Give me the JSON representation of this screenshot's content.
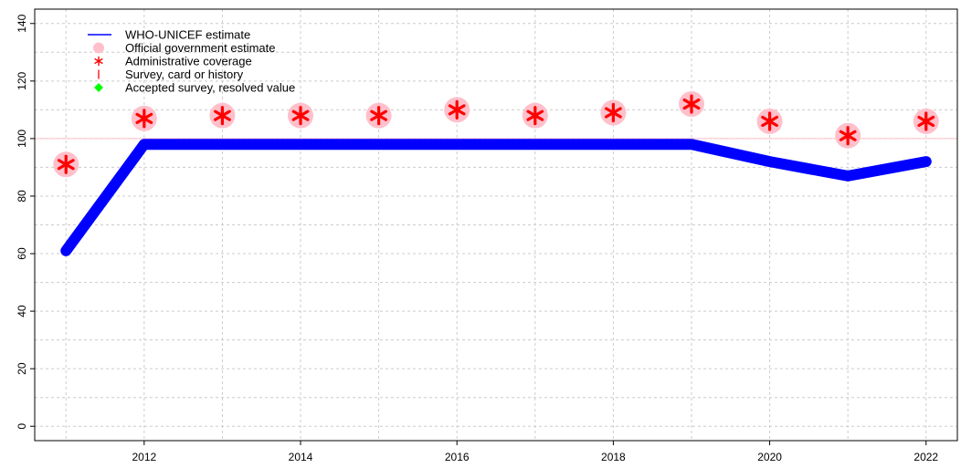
{
  "chart_data": {
    "type": "line",
    "title": "",
    "xlabel": "",
    "ylabel": "",
    "xlim": [
      2010.6,
      2022.4
    ],
    "ylim": [
      -5,
      145
    ],
    "x_ticks": [
      2012,
      2014,
      2016,
      2018,
      2020,
      2022
    ],
    "y_ticks": [
      0,
      20,
      40,
      60,
      80,
      100,
      120,
      140
    ],
    "grid": true,
    "reference_line": {
      "y": 100,
      "color": "#ffc0cb"
    },
    "legend": {
      "position": "top-left",
      "entries": [
        {
          "label": "WHO-UNICEF estimate",
          "marker": "line",
          "color": "#0000ff"
        },
        {
          "label": "Official government estimate",
          "marker": "circle",
          "color": "#ffc0cb"
        },
        {
          "label": "Administrative coverage",
          "marker": "asterisk",
          "color": "#ff0000"
        },
        {
          "label": "Survey, card or history",
          "marker": "vbar",
          "color": "#ff0000"
        },
        {
          "label": "Accepted survey, resolved value",
          "marker": "diamond",
          "color": "#00ff00"
        }
      ]
    },
    "series": [
      {
        "name": "WHO-UNICEF estimate",
        "color": "#0000ff",
        "x": [
          2011,
          2012,
          2013,
          2014,
          2015,
          2016,
          2017,
          2018,
          2019,
          2020,
          2021,
          2022
        ],
        "values": [
          61,
          98,
          98,
          98,
          98,
          98,
          98,
          98,
          98,
          92,
          87,
          92
        ]
      },
      {
        "name": "Official government estimate",
        "color": "#ffc0cb",
        "x": [
          2011,
          2012,
          2013,
          2014,
          2015,
          2016,
          2017,
          2018,
          2019,
          2020,
          2021,
          2022
        ],
        "values": [
          91,
          107,
          108,
          108,
          108,
          110,
          108,
          109,
          112,
          106,
          101,
          106
        ]
      },
      {
        "name": "Administrative coverage",
        "color": "#ff0000",
        "x": [
          2011,
          2012,
          2013,
          2014,
          2015,
          2016,
          2017,
          2018,
          2019,
          2020,
          2021,
          2022
        ],
        "values": [
          91,
          107,
          108,
          108,
          108,
          110,
          108,
          109,
          112,
          106,
          101,
          106
        ]
      }
    ]
  }
}
